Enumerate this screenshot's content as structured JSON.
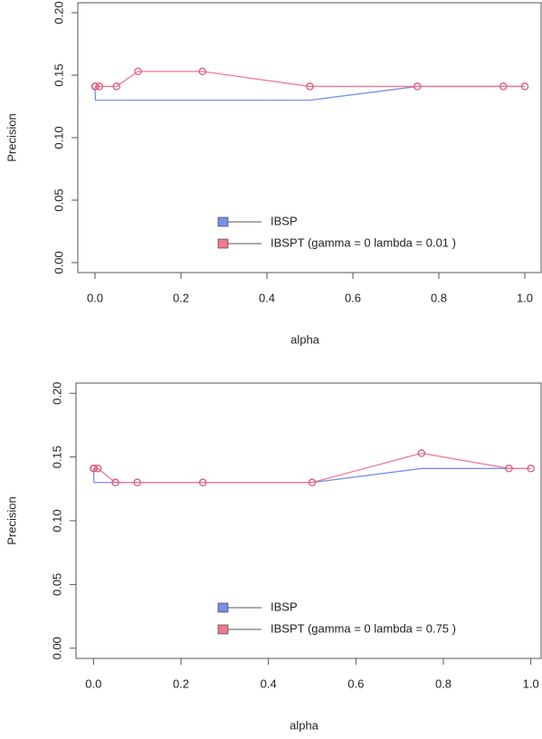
{
  "chart_data": [
    {
      "type": "line",
      "x_label": "alpha",
      "y_label": "Precision",
      "x": [
        0,
        0.001,
        0.01,
        0.05,
        0.1,
        0.25,
        0.5,
        0.75,
        0.95,
        1.0
      ],
      "series": [
        {
          "name": "IBSP",
          "color": "#7b8ee8",
          "markers": false,
          "values": [
            0.141,
            0.13,
            0.13,
            0.13,
            0.13,
            0.13,
            0.13,
            0.141,
            0.141,
            0.141
          ]
        },
        {
          "name": "IBSPT (gamma = 0 lambda = 0.01 )",
          "color": "#f07890",
          "markers": true,
          "values": [
            0.141,
            0.141,
            0.141,
            0.141,
            0.153,
            0.153,
            0.141,
            0.141,
            0.141,
            0.141
          ]
        }
      ],
      "xlim": [
        -0.04,
        1.04
      ],
      "ylim": [
        -0.008,
        0.208
      ],
      "xticks": [
        {
          "value": 0,
          "label": "0.0"
        },
        {
          "value": 0.2,
          "label": "0.2"
        },
        {
          "value": 0.4,
          "label": "0.4"
        },
        {
          "value": 0.6,
          "label": "0.6"
        },
        {
          "value": 0.8,
          "label": "0.8"
        },
        {
          "value": 1,
          "label": "1.0"
        }
      ],
      "yticks": [
        {
          "value": 0,
          "label": "0.00"
        },
        {
          "value": 0.05,
          "label": "0.05"
        },
        {
          "value": 0.1,
          "label": "0.10"
        },
        {
          "value": 0.15,
          "label": "0.15"
        },
        {
          "value": 0.2,
          "label": "0.20"
        }
      ],
      "legend": "bottom"
    },
    {
      "type": "line",
      "x_label": "alpha",
      "y_label": "Precision",
      "x": [
        0,
        0.001,
        0.01,
        0.05,
        0.1,
        0.25,
        0.5,
        0.75,
        0.95,
        1.0
      ],
      "series": [
        {
          "name": "IBSP",
          "color": "#7b8ee8",
          "markers": false,
          "values": [
            0.141,
            0.13,
            0.13,
            0.13,
            0.13,
            0.13,
            0.13,
            0.141,
            0.141,
            0.141
          ]
        },
        {
          "name": "IBSPT (gamma = 0 lambda = 0.75 )",
          "color": "#f07890",
          "markers": true,
          "values": [
            0.141,
            0.141,
            0.141,
            0.13,
            0.13,
            0.13,
            0.13,
            0.153,
            0.141,
            0.141
          ]
        }
      ],
      "xlim": [
        -0.04,
        1.04
      ],
      "ylim": [
        -0.008,
        0.208
      ],
      "xticks": [
        {
          "value": 0,
          "label": "0.0"
        },
        {
          "value": 0.2,
          "label": "0.2"
        },
        {
          "value": 0.4,
          "label": "0.4"
        },
        {
          "value": 0.6,
          "label": "0.6"
        },
        {
          "value": 0.8,
          "label": "0.8"
        },
        {
          "value": 1,
          "label": "1.0"
        }
      ],
      "yticks": [
        {
          "value": 0,
          "label": "0.00"
        },
        {
          "value": 0.05,
          "label": "0.05"
        },
        {
          "value": 0.1,
          "label": "0.10"
        },
        {
          "value": 0.15,
          "label": "0.15"
        },
        {
          "value": 0.2,
          "label": "0.20"
        }
      ],
      "legend": "bottom"
    }
  ]
}
